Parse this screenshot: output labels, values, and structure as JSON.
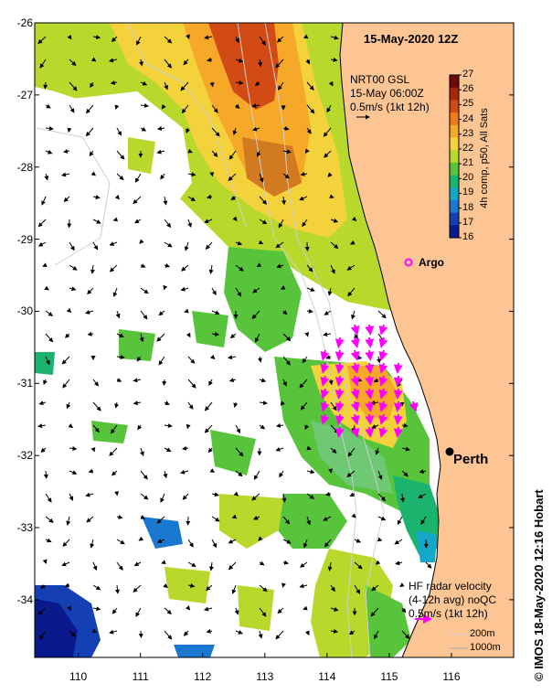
{
  "map": {
    "title": "15-May-2020 12Z",
    "lat_labels": [
      "-26",
      "-27",
      "-28",
      "-29",
      "-30",
      "-31",
      "-32",
      "-33",
      "-34"
    ],
    "lon_labels": [
      "110",
      "111",
      "112",
      "113",
      "114",
      "115",
      "116"
    ],
    "extent": {
      "lon_min": 109.3,
      "lon_max": 117.0,
      "lat_min": -34.8,
      "lat_max": -26.0
    },
    "land_color": "#fcc593",
    "cloud_color": "#ffffff",
    "gsl_legend": {
      "line1": "NRT00 GSL",
      "line2": "15-May 06:00Z",
      "line3": "0.5m/s (1kt 12h)"
    },
    "colorbar": {
      "ticks": [
        "27",
        "26",
        "25",
        "24",
        "23",
        "22",
        "21",
        "20",
        "19",
        "18",
        "17",
        "16"
      ],
      "caption": "4h comp, p50, All Sats",
      "colors": [
        "#6e0a0a",
        "#a8280a",
        "#d24a14",
        "#ee7a1a",
        "#f6a828",
        "#f4d23c",
        "#b8d82c",
        "#58c43c",
        "#1ab46e",
        "#14a8c8",
        "#1a78d0",
        "#1440b4",
        "#0a1a8c"
      ]
    },
    "places": {
      "argo": "Argo",
      "perth": "Perth"
    },
    "hf_legend": {
      "line1": "HF radar velocity",
      "line2": "(4-12h avg) noQC",
      "line3": "0.5m/s (1kt 12h)"
    },
    "depth_legend": {
      "line1": "200m",
      "line2": "1000m"
    },
    "credit": "© IMOS 18-May-2020 12:16 Hobart"
  }
}
